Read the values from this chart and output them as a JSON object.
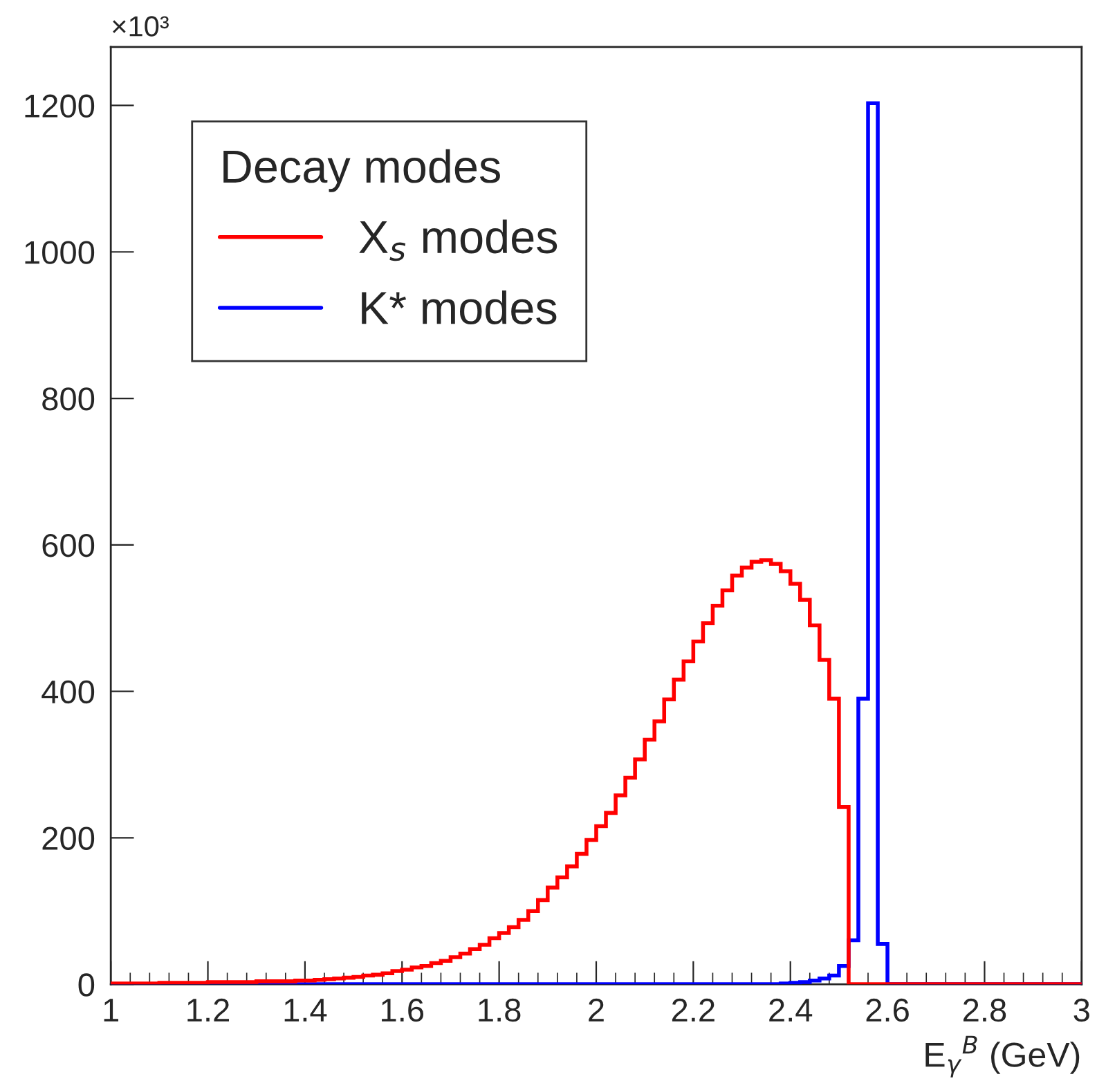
{
  "chart_data": {
    "type": "histogram",
    "xlabel": "E$_{γ}$$^{B}$ (GeV)",
    "legend_title": "Decay modes",
    "annotations": [
      "×10³"
    ],
    "bins": [
      1.0,
      1.02,
      1.04,
      1.06,
      1.08,
      1.1,
      1.12,
      1.14,
      1.16,
      1.18,
      1.2,
      1.22,
      1.24,
      1.26,
      1.28,
      1.3,
      1.32,
      1.34,
      1.36,
      1.38,
      1.4,
      1.42,
      1.44,
      1.46,
      1.48,
      1.5,
      1.52,
      1.54,
      1.56,
      1.58,
      1.6,
      1.62,
      1.64,
      1.66,
      1.68,
      1.7,
      1.72,
      1.74,
      1.76,
      1.78,
      1.8,
      1.82,
      1.84,
      1.86,
      1.88,
      1.9,
      1.92,
      1.94,
      1.96,
      1.98,
      2.0,
      2.02,
      2.04,
      2.06,
      2.08,
      2.1,
      2.12,
      2.14,
      2.16,
      2.18,
      2.2,
      2.22,
      2.24,
      2.26,
      2.28,
      2.3,
      2.32,
      2.34,
      2.36,
      2.38,
      2.4,
      2.42,
      2.44,
      2.46,
      2.48,
      2.5,
      2.52,
      2.54,
      2.56,
      2.58,
      2.6,
      2.62,
      2.64,
      2.66,
      2.68,
      2.7,
      2.72,
      2.74,
      2.76,
      2.78,
      2.8,
      2.82,
      2.84,
      2.86,
      2.88,
      2.9,
      2.92,
      2.94,
      2.96,
      2.98,
      3.0
    ],
    "series": [
      {
        "name": "X$_{s}$ modes",
        "color": "#ff0000",
        "values": [
          1,
          1,
          1,
          1,
          1,
          2,
          2,
          2,
          2,
          2,
          3,
          3,
          3,
          3,
          3,
          4,
          4,
          4,
          4,
          5,
          5,
          6,
          7,
          8,
          9,
          10,
          12,
          13,
          15,
          18,
          20,
          23,
          25,
          29,
          32,
          37,
          42,
          48,
          54,
          63,
          70,
          78,
          88,
          100,
          115,
          132,
          146,
          161,
          178,
          197,
          216,
          234,
          258,
          282,
          307,
          334,
          359,
          389,
          416,
          441,
          468,
          493,
          517,
          538,
          558,
          569,
          577,
          579,
          574,
          564,
          547,
          525,
          490,
          443,
          390,
          242,
          0,
          0,
          0,
          0,
          0,
          0,
          0,
          0,
          0,
          0,
          0,
          0,
          0,
          0,
          0,
          0,
          0,
          0,
          0,
          0,
          0,
          0,
          0,
          0
        ]
      },
      {
        "name": "K* modes",
        "color": "#0000ff",
        "values": [
          0,
          0,
          0,
          0,
          0,
          0,
          0,
          0,
          0,
          0,
          0,
          0,
          0,
          0,
          0,
          0,
          0,
          0,
          0,
          0,
          0,
          0,
          0,
          0,
          0,
          0,
          0,
          0,
          0,
          0,
          0,
          0,
          0,
          0,
          0,
          0,
          0,
          0,
          0,
          0,
          0,
          0,
          0,
          0,
          0,
          0,
          0,
          0,
          0,
          0,
          0,
          0,
          0,
          0,
          0,
          0,
          0,
          0,
          0,
          0,
          0,
          0,
          0,
          0,
          0,
          0,
          0,
          0,
          0,
          1,
          2,
          3,
          5,
          8,
          12,
          25,
          60,
          390,
          1203,
          55,
          0,
          0,
          0,
          0,
          0,
          0,
          0,
          0,
          0,
          0,
          0,
          0,
          0,
          0,
          0,
          0,
          0,
          0,
          0,
          0
        ]
      }
    ],
    "xlim": [
      1,
      3
    ],
    "xticks": [
      1,
      {
        "value": 1.2,
        "label": "1.2"
      },
      {
        "value": 1.4,
        "label": "1.4"
      },
      {
        "value": 1.6,
        "label": "1.6"
      },
      {
        "value": 1.8,
        "label": "1.8"
      },
      2,
      {
        "value": 2.2,
        "label": "2.2"
      },
      {
        "value": 2.4,
        "label": "2.4"
      },
      {
        "value": 2.6,
        "label": "2.6"
      },
      {
        "value": 2.8,
        "label": "2.8"
      },
      3
    ],
    "ylim": [
      0,
      1280
    ],
    "yticks": [
      0,
      200,
      400,
      600,
      800,
      1000,
      1200
    ],
    "legend": "top left",
    "grid": false
  }
}
